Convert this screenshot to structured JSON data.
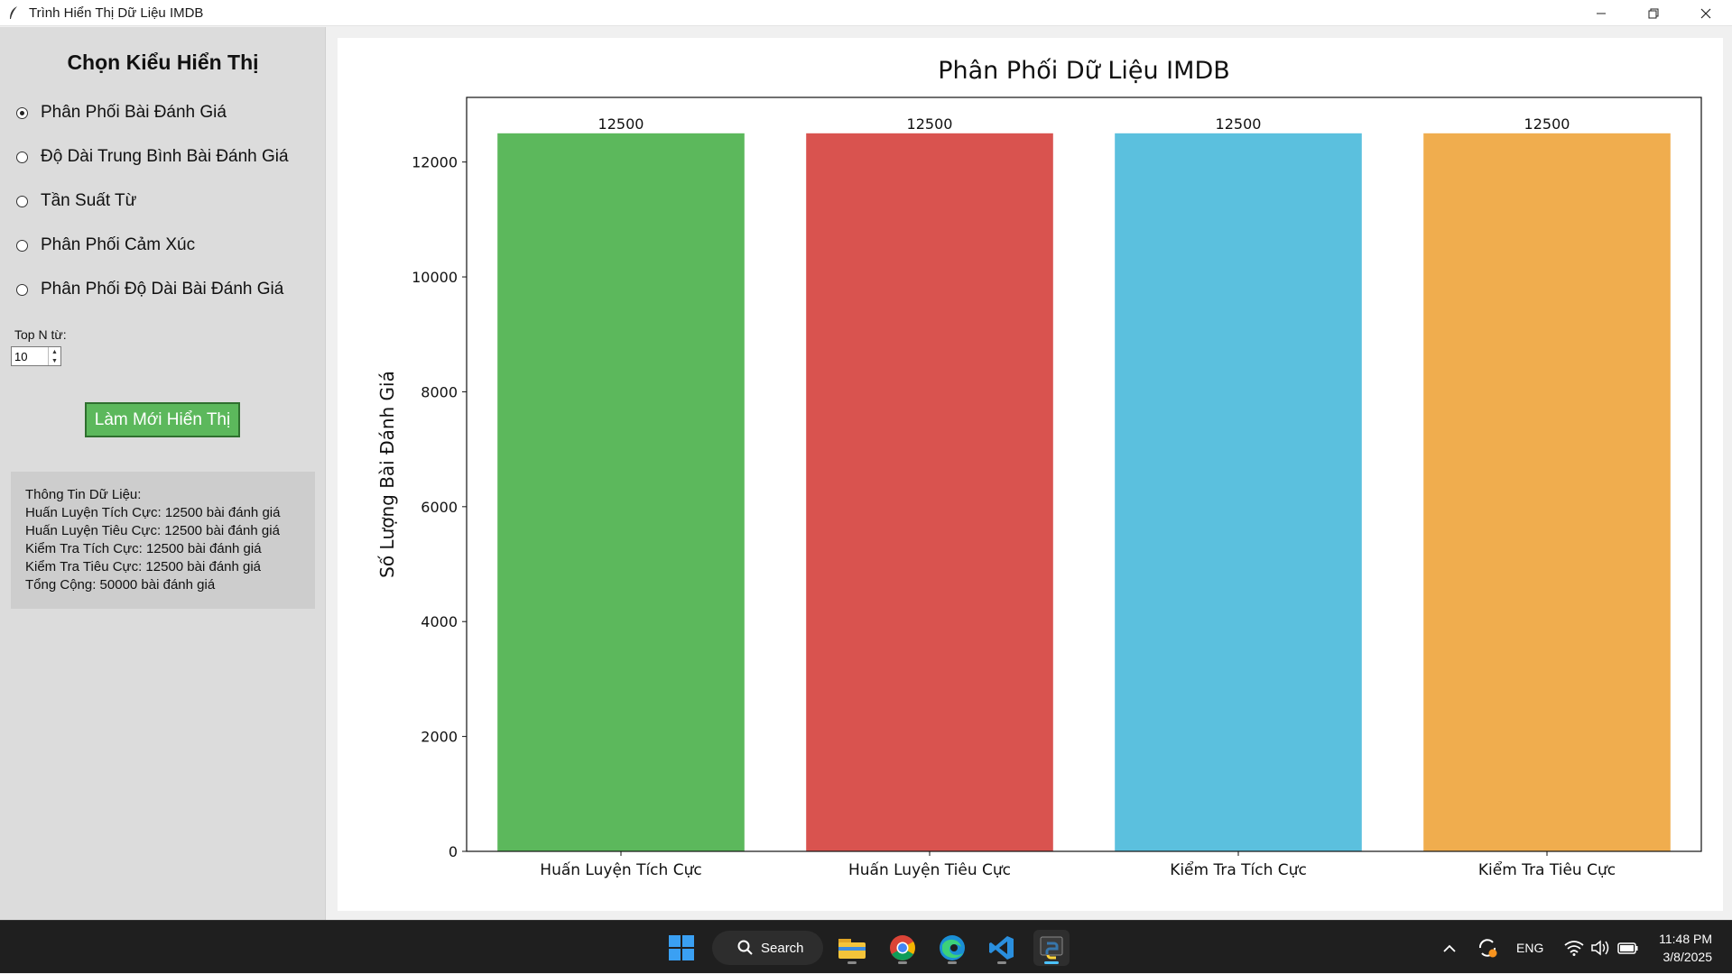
{
  "window": {
    "title": "Trình Hiển Thị Dữ Liệu IMDB"
  },
  "sidebar": {
    "heading": "Chọn Kiểu Hiển Thị",
    "options": [
      {
        "label": "Phân Phối Bài Đánh Giá",
        "selected": true
      },
      {
        "label": "Độ Dài Trung Bình Bài Đánh Giá",
        "selected": false
      },
      {
        "label": "Tần Suất Từ",
        "selected": false
      },
      {
        "label": "Phân Phối Cảm Xúc",
        "selected": false
      },
      {
        "label": "Phân Phối Độ Dài Bài Đánh Giá",
        "selected": false
      }
    ],
    "topn_label": "Top N từ:",
    "topn_value": "10",
    "refresh_label": "Làm Mới Hiển Thị",
    "info": {
      "heading": "Thông Tin Dữ Liệu:",
      "lines": [
        "Huấn Luyện Tích Cực: 12500 bài đánh giá",
        "Huấn Luyện Tiêu Cực: 12500 bài đánh giá",
        "Kiểm Tra Tích Cực: 12500 bài đánh giá",
        "Kiểm Tra Tiêu Cực: 12500 bài đánh giá",
        "Tổng Cộng: 50000 bài đánh giá"
      ]
    }
  },
  "chart_data": {
    "type": "bar",
    "title": "Phân Phối Dữ Liệu IMDB",
    "xlabel": "",
    "ylabel": "Số Lượng Bài Đánh Giá",
    "categories": [
      "Huấn Luyện Tích Cực",
      "Huấn Luyện Tiêu Cực",
      "Kiểm Tra Tích Cực",
      "Kiểm Tra Tiêu Cực"
    ],
    "values": [
      12500,
      12500,
      12500,
      12500
    ],
    "data_labels": [
      "12500",
      "12500",
      "12500",
      "12500"
    ],
    "colors": [
      "#5cb85c",
      "#d9534f",
      "#5bc0de",
      "#f0ad4e"
    ],
    "yticks": [
      0,
      2000,
      4000,
      6000,
      8000,
      10000,
      12000
    ],
    "ylim": [
      0,
      13125
    ],
    "grid": false
  },
  "taskbar": {
    "search_label": "Search",
    "lang": "ENG",
    "time": "11:48 PM",
    "date": "3/8/2025"
  }
}
